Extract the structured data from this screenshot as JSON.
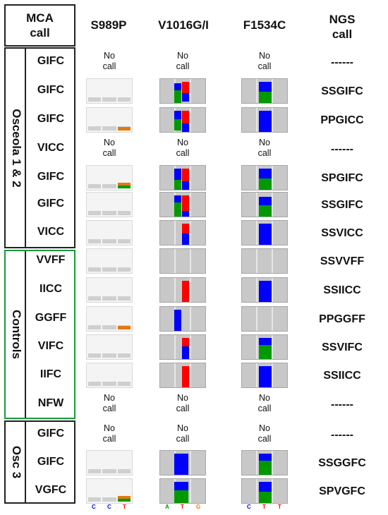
{
  "headers": {
    "mca_line1": "MCA",
    "mca_line2": "call",
    "s989p": "S989P",
    "v1016": "V1016G/I",
    "f1534c": "F1534C",
    "ngs_line1": "NGS",
    "ngs_line2": "call"
  },
  "groups": {
    "osceola12": "Osceola 1 & 2",
    "controls": "Controls",
    "osc3": "Osc 3"
  },
  "no_call": [
    "No",
    "call"
  ],
  "rows": [
    {
      "mca": "GIFC",
      "ngs": "------"
    },
    {
      "mca": "GIFC",
      "ngs": "SSGIFC"
    },
    {
      "mca": "GIFC",
      "ngs": "PPGICC"
    },
    {
      "mca": "VICC",
      "ngs": "------"
    },
    {
      "mca": "GIFC",
      "ngs": "SPGIFC"
    },
    {
      "mca": "GIFC",
      "ngs": "SSGIFC"
    },
    {
      "mca": "VICC",
      "ngs": "SSVICC"
    },
    {
      "mca": "VVFF",
      "ngs": "SSVVFF"
    },
    {
      "mca": "IICC",
      "ngs": "SSIICC"
    },
    {
      "mca": "GGFF",
      "ngs": "PPGGFF"
    },
    {
      "mca": "VIFC",
      "ngs": "SSVIFC"
    },
    {
      "mca": "IIFC",
      "ngs": "SSIICC"
    },
    {
      "mca": "NFW",
      "ngs": "------"
    },
    {
      "mca": "GIFC",
      "ngs": "------"
    },
    {
      "mca": "GIFC",
      "ngs": "SSGGFC"
    },
    {
      "mca": "VGFC",
      "ngs": "SPVGFC"
    }
  ],
  "nucleotides": {
    "s989p": [
      "C",
      "C",
      "T"
    ],
    "v1016": [
      "A",
      "T",
      "G"
    ],
    "f1534c": [
      "C",
      "T",
      "T"
    ]
  },
  "colors": {
    "red": "#ff0000",
    "blue": "#0000ff",
    "green": "#009a00",
    "orange": "#e07a10",
    "controls_border": "#1a9a3a",
    "group_border": "#222222",
    "trace_gray": "#c8c8c8"
  }
}
